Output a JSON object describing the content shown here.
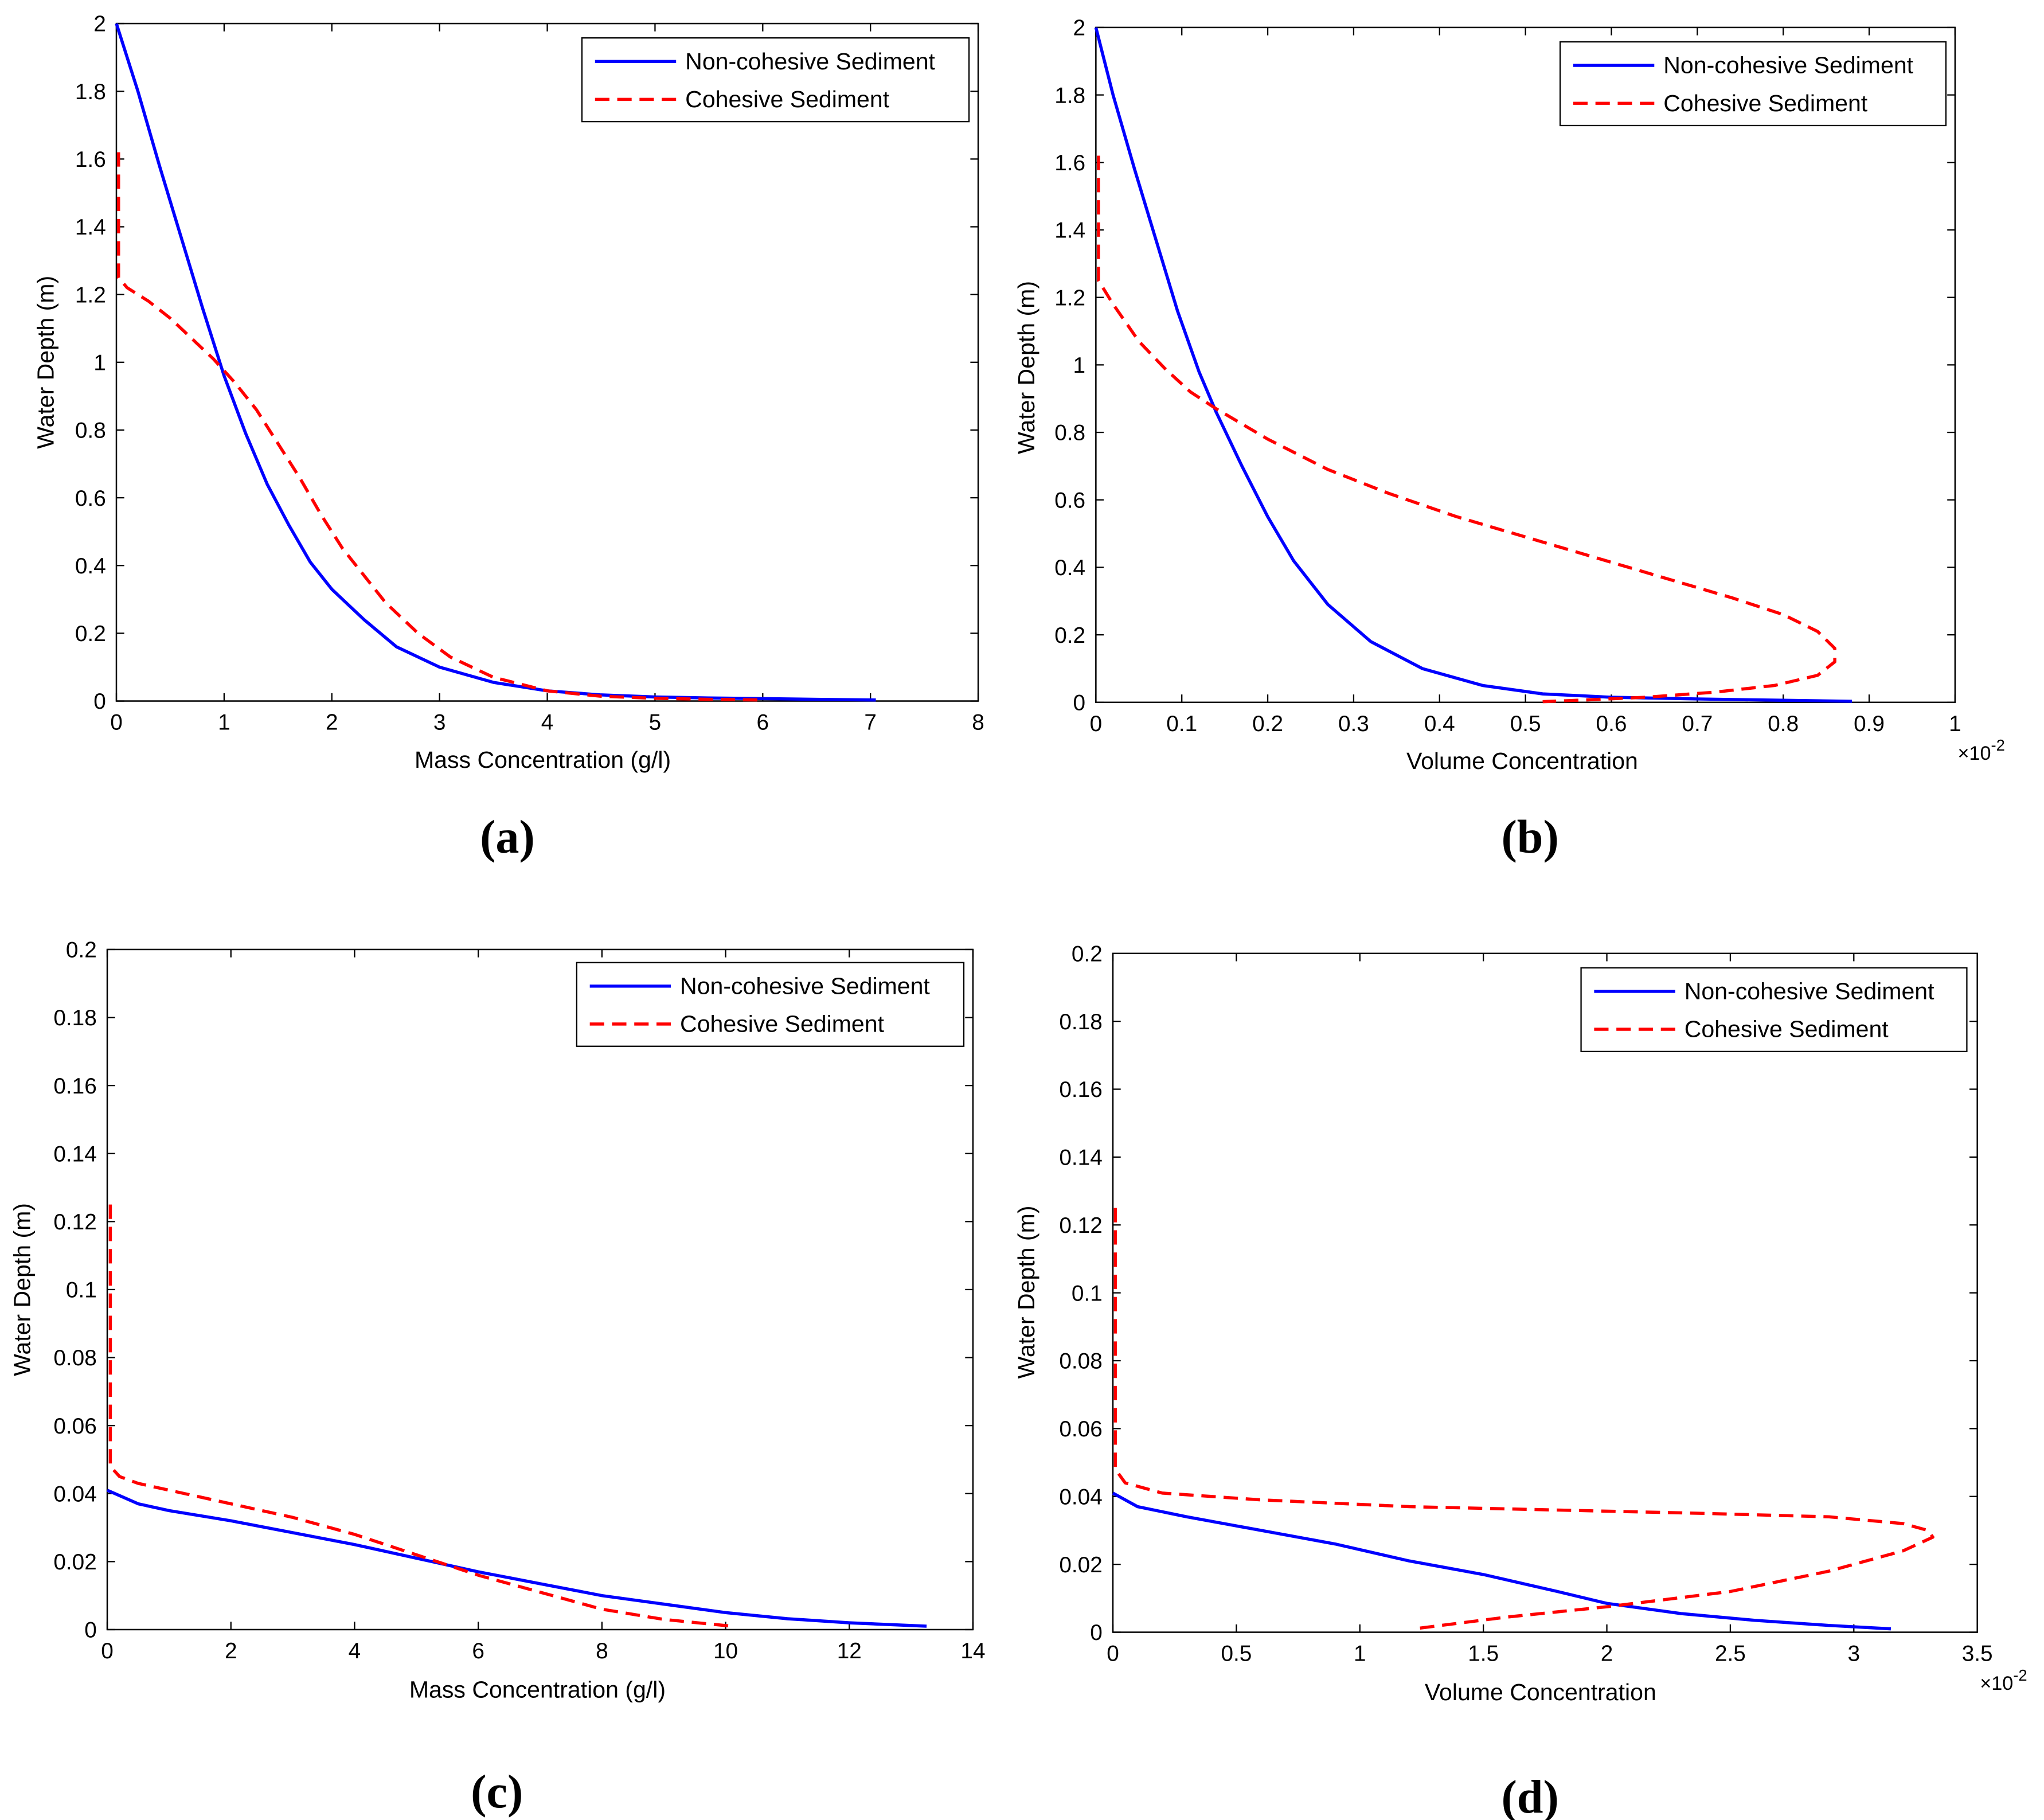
{
  "chart_data": [
    {
      "type": "line",
      "panel_label": "(a)",
      "xlabel": "Mass Concentration (g/l)",
      "ylabel": "Water Depth (m)",
      "xlim": [
        0,
        8
      ],
      "ylim": [
        0,
        2
      ],
      "x_ticks": [
        "0",
        "1",
        "2",
        "3",
        "4",
        "5",
        "6",
        "7",
        "8"
      ],
      "y_ticks": [
        "0",
        "0.2",
        "0.4",
        "0.6",
        "0.8",
        "1",
        "1.2",
        "1.4",
        "1.6",
        "1.8",
        "2"
      ],
      "x_exponent": "",
      "legend_position": "top-right",
      "series": [
        {
          "name": "Non-cohesive Sediment",
          "color": "#0000ff",
          "style": "solid",
          "points": [
            [
              0,
              2.0
            ],
            [
              0.2,
              1.8
            ],
            [
              0.4,
              1.58
            ],
            [
              0.6,
              1.37
            ],
            [
              0.8,
              1.16
            ],
            [
              1.0,
              0.96
            ],
            [
              1.2,
              0.79
            ],
            [
              1.4,
              0.64
            ],
            [
              1.6,
              0.52
            ],
            [
              1.8,
              0.41
            ],
            [
              2.0,
              0.33
            ],
            [
              2.3,
              0.24
            ],
            [
              2.6,
              0.16
            ],
            [
              3.0,
              0.1
            ],
            [
              3.5,
              0.055
            ],
            [
              4.0,
              0.03
            ],
            [
              4.5,
              0.018
            ],
            [
              5.0,
              0.012
            ],
            [
              5.5,
              0.009
            ],
            [
              6.0,
              0.007
            ],
            [
              6.5,
              0.005
            ],
            [
              7.05,
              0.003
            ]
          ]
        },
        {
          "name": "Cohesive Sediment",
          "color": "#ff0000",
          "style": "dashed",
          "points": [
            [
              0.02,
              1.62
            ],
            [
              0.02,
              1.25
            ],
            [
              0.1,
              1.22
            ],
            [
              0.3,
              1.18
            ],
            [
              0.5,
              1.13
            ],
            [
              0.7,
              1.07
            ],
            [
              0.9,
              1.01
            ],
            [
              1.1,
              0.94
            ],
            [
              1.3,
              0.86
            ],
            [
              1.5,
              0.76
            ],
            [
              1.7,
              0.66
            ],
            [
              1.9,
              0.55
            ],
            [
              2.1,
              0.45
            ],
            [
              2.3,
              0.37
            ],
            [
              2.5,
              0.29
            ],
            [
              2.8,
              0.2
            ],
            [
              3.1,
              0.13
            ],
            [
              3.5,
              0.07
            ],
            [
              4.0,
              0.03
            ],
            [
              4.5,
              0.014
            ],
            [
              5.0,
              0.008
            ],
            [
              5.5,
              0.005
            ],
            [
              6.0,
              0.003
            ]
          ]
        }
      ]
    },
    {
      "type": "line",
      "panel_label": "(b)",
      "xlabel": "Volume Concentration",
      "ylabel": "Water Depth (m)",
      "xlim": [
        0,
        1
      ],
      "ylim": [
        0,
        2
      ],
      "x_ticks": [
        "0",
        "0.1",
        "0.2",
        "0.3",
        "0.4",
        "0.5",
        "0.6",
        "0.7",
        "0.8",
        "0.9",
        "1"
      ],
      "y_ticks": [
        "0",
        "0.2",
        "0.4",
        "0.6",
        "0.8",
        "1",
        "1.2",
        "1.4",
        "1.6",
        "1.8",
        "2"
      ],
      "x_exponent": "×10",
      "x_exponent_power": "-2",
      "legend_position": "top-right",
      "series": [
        {
          "name": "Non-cohesive Sediment",
          "color": "#0000ff",
          "style": "solid",
          "points": [
            [
              0,
              2.0
            ],
            [
              0.02,
              1.8
            ],
            [
              0.045,
              1.58
            ],
            [
              0.07,
              1.37
            ],
            [
              0.095,
              1.16
            ],
            [
              0.12,
              0.98
            ],
            [
              0.14,
              0.86
            ],
            [
              0.17,
              0.7
            ],
            [
              0.2,
              0.55
            ],
            [
              0.23,
              0.42
            ],
            [
              0.27,
              0.29
            ],
            [
              0.32,
              0.18
            ],
            [
              0.38,
              0.1
            ],
            [
              0.45,
              0.05
            ],
            [
              0.52,
              0.025
            ],
            [
              0.6,
              0.015
            ],
            [
              0.7,
              0.01
            ],
            [
              0.8,
              0.006
            ],
            [
              0.88,
              0.003
            ]
          ]
        },
        {
          "name": "Cohesive Sediment",
          "color": "#ff0000",
          "style": "dashed",
          "points": [
            [
              0.003,
              1.62
            ],
            [
              0.003,
              1.25
            ],
            [
              0.02,
              1.18
            ],
            [
              0.05,
              1.07
            ],
            [
              0.08,
              0.99
            ],
            [
              0.11,
              0.92
            ],
            [
              0.14,
              0.87
            ],
            [
              0.2,
              0.78
            ],
            [
              0.27,
              0.69
            ],
            [
              0.34,
              0.62
            ],
            [
              0.42,
              0.55
            ],
            [
              0.5,
              0.49
            ],
            [
              0.58,
              0.43
            ],
            [
              0.66,
              0.37
            ],
            [
              0.74,
              0.31
            ],
            [
              0.8,
              0.26
            ],
            [
              0.84,
              0.21
            ],
            [
              0.86,
              0.16
            ],
            [
              0.86,
              0.12
            ],
            [
              0.84,
              0.08
            ],
            [
              0.79,
              0.05
            ],
            [
              0.72,
              0.03
            ],
            [
              0.64,
              0.015
            ],
            [
              0.56,
              0.006
            ],
            [
              0.52,
              0.002
            ]
          ]
        }
      ]
    },
    {
      "type": "line",
      "panel_label": "(c)",
      "xlabel": "Mass Concentration (g/l)",
      "ylabel": "Water Depth (m)",
      "xlim": [
        0,
        14
      ],
      "ylim": [
        0,
        0.2
      ],
      "x_ticks": [
        "0",
        "2",
        "4",
        "6",
        "8",
        "10",
        "12",
        "14"
      ],
      "y_ticks": [
        "0",
        "0.02",
        "0.04",
        "0.06",
        "0.08",
        "0.1",
        "0.12",
        "0.14",
        "0.16",
        "0.18",
        "0.2"
      ],
      "x_exponent": "",
      "legend_position": "top-right",
      "series": [
        {
          "name": "Non-cohesive Sediment",
          "color": "#0000ff",
          "style": "solid",
          "points": [
            [
              0,
              0.041
            ],
            [
              0.5,
              0.037
            ],
            [
              1.0,
              0.035
            ],
            [
              2.0,
              0.032
            ],
            [
              3.0,
              0.0285
            ],
            [
              4.0,
              0.025
            ],
            [
              5.0,
              0.021
            ],
            [
              6.0,
              0.017
            ],
            [
              7.0,
              0.0135
            ],
            [
              8.0,
              0.01
            ],
            [
              9.0,
              0.0075
            ],
            [
              10.0,
              0.005
            ],
            [
              11.0,
              0.0032
            ],
            [
              12.0,
              0.002
            ],
            [
              13.25,
              0.001
            ]
          ]
        },
        {
          "name": "Cohesive Sediment",
          "color": "#ff0000",
          "style": "dashed",
          "points": [
            [
              0.05,
              0.125
            ],
            [
              0.05,
              0.048
            ],
            [
              0.2,
              0.045
            ],
            [
              0.5,
              0.043
            ],
            [
              1.0,
              0.041
            ],
            [
              2.0,
              0.037
            ],
            [
              3.0,
              0.033
            ],
            [
              4.0,
              0.028
            ],
            [
              5.0,
              0.022
            ],
            [
              6.0,
              0.016
            ],
            [
              7.0,
              0.011
            ],
            [
              8.0,
              0.006
            ],
            [
              9.0,
              0.003
            ],
            [
              10.1,
              0.001
            ]
          ]
        }
      ]
    },
    {
      "type": "line",
      "panel_label": "(d)",
      "xlabel": "Volume Concentration",
      "ylabel": "Water Depth (m)",
      "xlim": [
        0,
        3.5
      ],
      "ylim": [
        0,
        0.2
      ],
      "x_ticks": [
        "0",
        "0.5",
        "1",
        "1.5",
        "2",
        "2.5",
        "3",
        "3.5"
      ],
      "y_ticks": [
        "0",
        "0.02",
        "0.04",
        "0.06",
        "0.08",
        "0.1",
        "0.12",
        "0.14",
        "0.16",
        "0.18",
        "0.2"
      ],
      "x_exponent": "×10",
      "x_exponent_power": "-2",
      "legend_position": "top-right",
      "series": [
        {
          "name": "Non-cohesive Sediment",
          "color": "#0000ff",
          "style": "solid",
          "points": [
            [
              0,
              0.041
            ],
            [
              0.1,
              0.037
            ],
            [
              0.3,
              0.034
            ],
            [
              0.6,
              0.03
            ],
            [
              0.9,
              0.026
            ],
            [
              1.2,
              0.021
            ],
            [
              1.5,
              0.017
            ],
            [
              1.8,
              0.012
            ],
            [
              2.0,
              0.0085
            ],
            [
              2.3,
              0.0055
            ],
            [
              2.6,
              0.0035
            ],
            [
              2.9,
              0.002
            ],
            [
              3.15,
              0.001
            ]
          ]
        },
        {
          "name": "Cohesive Sediment",
          "color": "#ff0000",
          "style": "dashed",
          "points": [
            [
              0.01,
              0.125
            ],
            [
              0.01,
              0.048
            ],
            [
              0.05,
              0.044
            ],
            [
              0.2,
              0.041
            ],
            [
              0.6,
              0.039
            ],
            [
              1.2,
              0.037
            ],
            [
              1.8,
              0.036
            ],
            [
              2.4,
              0.035
            ],
            [
              2.9,
              0.034
            ],
            [
              3.2,
              0.032
            ],
            [
              3.3,
              0.03
            ],
            [
              3.32,
              0.028
            ],
            [
              3.2,
              0.024
            ],
            [
              2.9,
              0.018
            ],
            [
              2.5,
              0.012
            ],
            [
              2.0,
              0.0075
            ],
            [
              1.6,
              0.0045
            ],
            [
              1.22,
              0.001
            ]
          ]
        }
      ]
    }
  ]
}
